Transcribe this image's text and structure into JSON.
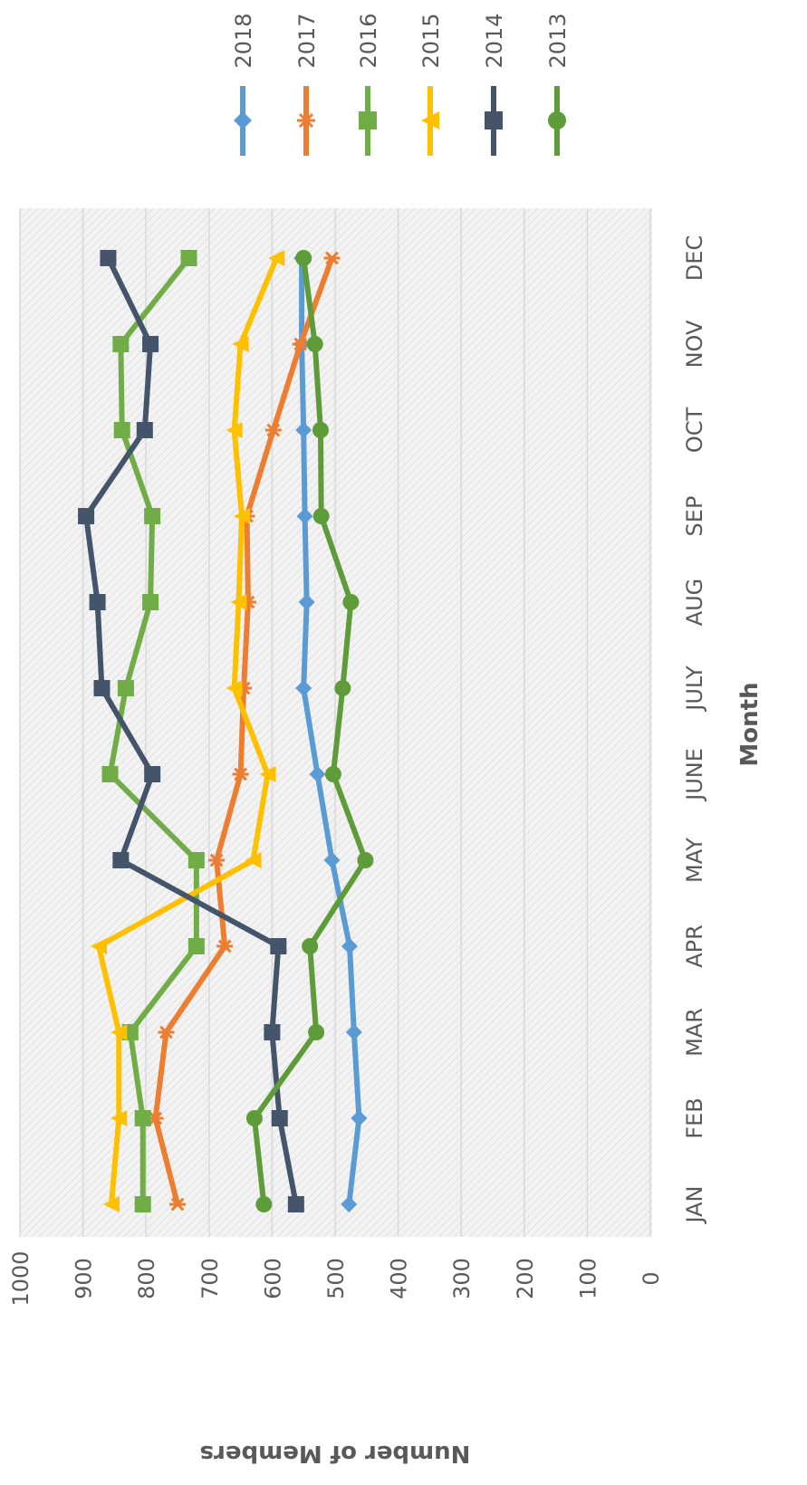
{
  "chart_data": {
    "type": "line",
    "title": "",
    "xlabel": "Month",
    "ylabel": "Number of Members",
    "categories": [
      "JAN",
      "FEB",
      "MAR",
      "APR",
      "MAY",
      "JUNE",
      "JULY",
      "AUG",
      "SEP",
      "OCT",
      "NOV",
      "DEC"
    ],
    "ylim": [
      0,
      1000
    ],
    "yticks": [
      "0",
      "100",
      "200",
      "300",
      "400",
      "500",
      "600",
      "700",
      "800",
      "900",
      "1000"
    ],
    "grid": true,
    "orientation": "rotated-90-clockwise",
    "legend_position": "right",
    "series": [
      {
        "name": "2018",
        "color": "#5B9BD5",
        "marker": "diamond",
        "values": [
          478,
          462,
          470,
          477,
          505,
          528,
          550,
          545,
          548,
          550,
          553,
          553
        ]
      },
      {
        "name": "2017",
        "color": "#ED7D31",
        "marker": "star",
        "values": [
          750,
          785,
          768,
          675,
          688,
          650,
          645,
          638,
          640,
          598,
          555,
          505
        ]
      },
      {
        "name": "2016",
        "color": "#70AD47",
        "marker": "square",
        "values": [
          805,
          805,
          825,
          720,
          720,
          857,
          832,
          793,
          790,
          838,
          840,
          732
        ]
      },
      {
        "name": "2015",
        "color": "#FFC000",
        "marker": "triangle",
        "values": [
          855,
          843,
          843,
          875,
          630,
          607,
          660,
          653,
          648,
          660,
          650,
          593
        ]
      },
      {
        "name": "2014",
        "color": "#44546A",
        "marker": "square",
        "values": [
          562,
          588,
          600,
          590,
          840,
          790,
          870,
          877,
          895,
          802,
          793,
          860
        ]
      },
      {
        "name": "2013",
        "color": "#5E9C3A",
        "marker": "circle",
        "values": [
          613,
          628,
          530,
          540,
          452,
          503,
          488,
          475,
          522,
          523,
          532,
          550
        ]
      }
    ]
  }
}
